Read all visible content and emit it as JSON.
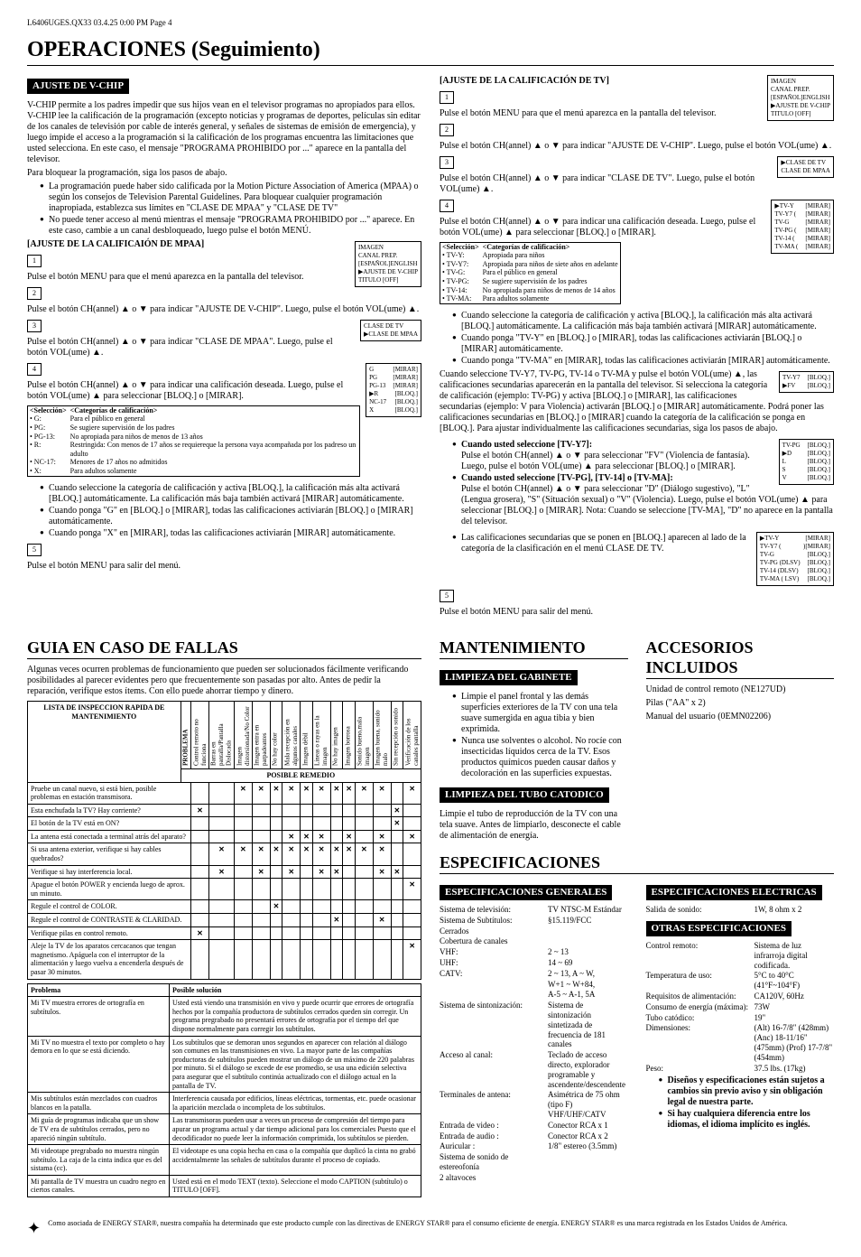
{
  "header_line": "L6406UGES.QX33  03.4.25 0:00 PM  Page 4",
  "main_title": "OPERACIONES (Seguimiento)",
  "vchip": {
    "heading": "AJUSTE DE V-CHIP",
    "intro": "V-CHIP permite a los padres impedir que sus hijos vean en el televisor programas no apropiados para ellos. V-CHIP lee la calificación de la programación (excepto noticias y programas de deportes, películas sin editar de los canales de televisión por cable de interés general, y señales de sistemas de emisión de emergencia), y luego impide el acceso a la programación si la calificación de los programas encuentra las limitaciones que usted selecciona. En este caso, el mensaje \"PROGRAMA PROHIBIDO por ...\" aparece en la pantalla del televisor.",
    "block_intro": "Para bloquear la programación, siga los pasos de abajo.",
    "bullets": [
      "La programación puede haber sido calificada por la Motion Picture Association of America (MPAA) o según los consejos de Television Parental Guidelines. Para bloquear cualquier programación inapropiada, establezca sus límites en \"CLASE DE MPAA\" y \"CLASE DE TV\"",
      "No puede tener acceso al menú mientras el mensaje \"PROGRAMA PROHIBIDO por ...\" aparece. En este caso, cambie a un canal desbloqueado, luego pulse el botón MENÚ."
    ],
    "mpaa_heading": "[AJUSTE DE LA CALIFICAIÓN DE MPAA]",
    "step1": "Pulse el botón MENU para que el menú aparezca en la pantalla del televisor.",
    "step2": "Pulse el botón CH(annel) ▲ o ▼ para indicar \"AJUSTE DE V-CHIP\". Luego, pulse el botón VOL(ume) ▲.",
    "step3": "Pulse el botón CH(annel) ▲ o ▼ para indicar \"CLASE DE MPAA\". Luego, pulse el botón VOL(ume) ▲.",
    "step4": "Pulse el botón CH(annel) ▲ o ▼ para indicar una calificación deseada. Luego, pulse el botón VOL(ume) ▲ para seleccionar [BLOQ.] o [MIRAR].",
    "sel_hdr": "<Selección>",
    "cat_hdr": "<Categorías de calificación>",
    "mpaa_rows": [
      [
        "• G:",
        "Para el público en general"
      ],
      [
        "• PG:",
        "Se sugiere supervisión de los padres"
      ],
      [
        "• PG-13:",
        "No apropiada para niños de menos de 13 años"
      ],
      [
        "• R:",
        "Restringida: Con menos de 17 años se requiereque la persona vaya acompañada por los padreso un adulto"
      ],
      [
        "• NC-17:",
        "Menores de 17 años no admitidos"
      ],
      [
        "• X:",
        "Para adultos solamente"
      ]
    ],
    "mpaa_notes": [
      "Cuando seleccione la categoría de calificación y activa [BLOQ.], la calificación más alta activará [BLOQ.] automáticamente. La calificación más baja también activará [MIRAR] automáticamente.",
      "Cuando ponga \"G\" en [BLOQ.] o [MIRAR], todas las calificaciones activiarán [BLOQ.] o [MIRAR] automáticamente.",
      "Cuando ponga \"X\" en [MIRAR], todas las calificaciones activiarán [MIRAR] automáticamente."
    ],
    "step5": "Pulse el botón MENU para salir del menú.",
    "menu1": [
      "IMAGEN",
      "CANAL PREP.",
      "[ESPAÑOL]ENGLISH",
      "▶AJUSTE DE V-CHIP",
      "TITULO [OFF]"
    ],
    "menu2": [
      "  CLASE DE TV",
      "▶CLASE DE MPAA"
    ],
    "menu3": [
      [
        "G",
        "[MIRAR]"
      ],
      [
        "PG",
        "[MIRAR]"
      ],
      [
        "PG-13",
        "[MIRAR]"
      ],
      [
        "▶R",
        "[BLOQ.]"
      ],
      [
        "NC-17",
        "[BLOQ.]"
      ],
      [
        "X",
        "[BLOQ.]"
      ]
    ],
    "tv_heading": "[AJUSTE DE LA CALIFICACIÓN DE TV]",
    "tv_step1": "Pulse el botón MENU para que el menú aparezca en la pantalla del televisor.",
    "tv_step2": "Pulse el botón CH(annel) ▲ o ▼ para indicar \"AJUSTE DE V-CHIP\". Luego, pulse el botón VOL(ume) ▲.",
    "tv_step3": "Pulse el botón CH(annel) ▲ o ▼ para indicar \"CLASE DE TV\". Luego, pulse el botón VOL(ume) ▲.",
    "tv_step4": "Pulse el botón CH(annel) ▲ o ▼ para indicar una calificación deseada. Luego, pulse el botón VOL(ume) ▲ para seleccionar [BLOQ.] o [MIRAR].",
    "tv_rows": [
      [
        "• TV-Y:",
        "Apropiada para niños"
      ],
      [
        "• TV-Y7:",
        "Apropiada para niños de siete años en adelante"
      ],
      [
        "• TV-G:",
        "Para el público en general"
      ],
      [
        "• TV-PG:",
        "Se sugiere supervisión de los padres"
      ],
      [
        "• TV-14:",
        "No apropiada para niños de menos de 14 años"
      ],
      [
        "• TV-MA:",
        "Para adultos solamente"
      ]
    ],
    "tv_notes": [
      "Cuando seleccione la categoría de calificación y activa [BLOQ.], la calificación más alta activará [BLOQ.] automáticamente. La calificación más baja también activará [MIRAR] automáticamente.",
      "Cuando ponga \"TV-Y\" en [BLOQ.] o [MIRAR], todas las calificaciones activiarán [BLOQ.] o [MIRAR] automáticamente.",
      "Cuando ponga \"TV-MA\" en [MIRAR], todas las calificaciones activiarán [MIRAR] automáticamente."
    ],
    "tv_secondary_intro": "Cuando seleccione TV-Y7, TV-PG, TV-14 o TV-MA y pulse el botón VOL(ume) ▲, las calificaciones secundarias aparecerán en la pantalla del televisor. Si selecciona la categoría de calificación (ejemplo: TV-PG) y activa [BLOQ.] o [MIRAR], las calificaciones secundarias (ejemplo: V para Violencia) activarán [BLOQ.] o [MIRAR] automáticamente. Podrá poner las calificaciones secundarias en [BLOQ.] o [MIRAR] cuando la categoría de la calificación se ponga en [BLOQ.]. Para ajustar individualmente las calificaciones secundarias, siga los pasos de abajo.",
    "tv_y7_bold": "Cuando usted seleccione [TV-Y7]:",
    "tv_y7_text": "Pulse el botón CH(annel) ▲ o ▼ para seleccionar \"FV\" (Violencia de fantasía). Luego, pulse el botón VOL(ume) ▲ para seleccionar [BLOQ.] o [MIRAR].",
    "tv_pg_bold": "Cuando usted seleccione [TV-PG], [TV-14] o [TV-MA]:",
    "tv_pg_text": "Pulse el botón CH(annel) ▲ o ▼ para seleccionar \"D\" (Diálogo sugestivo), \"L\" (Lengua grosera), \"S\" (Situación sexual) o \"V\" (Violencia). Luego, pulse el botón VOL(ume) ▲ para seleccionar [BLOQ.] o [MIRAR]. Nota: Cuando se seleccione [TV-MA], \"D\" no aparece en la pantalla del televisor.",
    "tv_final_note": "Las calificaciones secundarias que se ponen en [BLOQ.] aparecen al lado de la categoría de la clasificación en el menú CLASE DE TV.",
    "tv_step5": "Pulse el botón MENU para salir del menú.",
    "tv_menu2": [
      "▶CLASE DE TV",
      "  CLASE DE MPAA"
    ],
    "tv_menu3": [
      [
        "▶TV-Y",
        "[MIRAR]"
      ],
      [
        "TV-Y7  (",
        "[MIRAR]"
      ],
      [
        "TV-G",
        "[MIRAR]"
      ],
      [
        "TV-PG (",
        "[MIRAR]"
      ],
      [
        "TV-14  (",
        "[MIRAR]"
      ],
      [
        "TV-MA (",
        "[MIRAR]"
      ]
    ],
    "tv_menu4": [
      [
        "TV-Y7",
        "[BLOQ.]"
      ],
      [
        "▶FV",
        "[BLOQ.]"
      ]
    ],
    "tv_menu5": [
      [
        "TV-PG",
        "[BLOQ.]"
      ],
      [
        "▶D",
        "[BLOQ.]"
      ],
      [
        "L",
        "[BLOQ.]"
      ],
      [
        "S",
        "[BLOQ.]"
      ],
      [
        "V",
        "[BLOQ.]"
      ]
    ],
    "tv_menu6": [
      [
        "▶TV-Y",
        "[MIRAR]"
      ],
      [
        "TV-Y7 (",
        ")[MIRAR]"
      ],
      [
        "TV-G",
        "[BLOQ.]"
      ],
      [
        "TV-PG (DLSV)",
        "[BLOQ.]"
      ],
      [
        "TV-14  (DLSV)",
        "[BLOQ.]"
      ],
      [
        "TV-MA (  LSV)",
        "[BLOQ.]"
      ]
    ]
  },
  "guia": {
    "title": "GUIA EN CASO DE FALLAS",
    "intro": "Algunas veces ocurren problemas de funcionamiento que pueden ser solucionados fácilmente verificando posibilidades al parecer evidentes pero que frecuentemente son pasadas por alto. Antes de pedir la reparación, verifique estos ítems. Con ello puede ahorrar tiempo y dinero.",
    "table1_title": "LISTA DE INSPECCION RAPIDA DE MANTENIMIENTO",
    "problema_lbl": "PROBLEMA",
    "remedio_lbl": "POSIBLE REMEDIO",
    "cols": [
      "Control remoto no funciona",
      "Barras en pantalla/Pantalla Dislocada",
      "Imagen distorsionada/No Color",
      "Imagen entra en parpadeantes",
      "No hay color",
      "Mala recepción en algunos canales",
      "Imagen débil",
      "Líneas o rayas en la imagen",
      "No hay imagen",
      "Imagen borrosa",
      "Sonido bueno,mala imagen",
      "Imagen buena, sonido malo",
      "Sin recepción o sonido",
      "Verificación de los canales pantalla"
    ],
    "rows": [
      {
        "r": "Pruebe un canal nuevo, si está bien, posible problemas en estación transmisora.",
        "x": [
          0,
          0,
          1,
          1,
          1,
          1,
          1,
          1,
          1,
          1,
          1,
          1,
          0,
          1
        ]
      },
      {
        "r": "Esta enchufada la TV?  Hay corriente?",
        "x": [
          1,
          0,
          0,
          0,
          0,
          0,
          0,
          0,
          0,
          0,
          0,
          0,
          1,
          0
        ]
      },
      {
        "r": "El botón de la TV está en ON?",
        "x": [
          0,
          0,
          0,
          0,
          0,
          0,
          0,
          0,
          0,
          0,
          0,
          0,
          1,
          0
        ]
      },
      {
        "r": "La antena está conectada a terminal atrás del aparato?",
        "x": [
          0,
          0,
          0,
          0,
          0,
          1,
          1,
          1,
          0,
          1,
          0,
          1,
          0,
          1
        ]
      },
      {
        "r": "Si usa antena exterior, verifique si hay cables quebrados?",
        "x": [
          0,
          1,
          1,
          1,
          1,
          1,
          1,
          1,
          1,
          1,
          1,
          1,
          0,
          0
        ]
      },
      {
        "r": "Verifique si hay interferencia local.",
        "x": [
          0,
          1,
          0,
          1,
          0,
          1,
          0,
          1,
          1,
          0,
          0,
          1,
          1,
          0
        ]
      },
      {
        "r": "Apague el botón POWER y encienda luego de aprox. un minuto.",
        "x": [
          0,
          0,
          0,
          0,
          0,
          0,
          0,
          0,
          0,
          0,
          0,
          0,
          0,
          1
        ]
      },
      {
        "r": "Regule el control de COLOR.",
        "x": [
          0,
          0,
          0,
          0,
          1,
          0,
          0,
          0,
          0,
          0,
          0,
          0,
          0,
          0
        ]
      },
      {
        "r": "Regule el control de CONTRASTE & CLARIDAD.",
        "x": [
          0,
          0,
          0,
          0,
          0,
          0,
          0,
          0,
          1,
          0,
          0,
          1,
          0,
          0
        ]
      },
      {
        "r": "Verifique pilas en control remoto.",
        "x": [
          1,
          0,
          0,
          0,
          0,
          0,
          0,
          0,
          0,
          0,
          0,
          0,
          0,
          0
        ]
      },
      {
        "r": "Aleje la TV de los aparatos cercacanos que tengan magnetismo. Apáguela con el interruptor de la alimentación y luego vuelva a encenderla después de pasar 30 minutos.",
        "x": [
          0,
          0,
          0,
          0,
          0,
          0,
          0,
          0,
          0,
          0,
          0,
          0,
          0,
          1
        ]
      }
    ],
    "table2_hdr": [
      "Problema",
      "Posible solución"
    ],
    "table2": [
      [
        "Mi TV muestra errores de ortografía en subtítulos.",
        "Usted está viendo una transmisión en vivo y puede ocurrir que errores de ortografía hechos por la compañía productora de subtítulos cerrados queden sin corregir. Un programa pregrabado no presentará errores de ortografía por el tiempo del que dispone normalmente para corregir los subtítulos."
      ],
      [
        "Mi TV no muestra el texto por completo o hay demora en lo que se está diciendo.",
        "Los subtítulos que se demoran unos segundos en aparecer con relación al diálogo son comunes en las transmisiones en vivo. La mayor parte de las compañías productoras de subtítulos pueden mostrar un diálogo de un máximo de 220 palabras por minuto. Si el diálogo se excede de ese promedio, se usa una edición selectiva para asegurar que el subtítulo continúa actualizado con el diálogo actual en la pantalla de TV."
      ],
      [
        "Mis subtítulos están mezclados con cuadros blancos en la patalla.",
        "Interferencia causada por edificios, líneas eléctricas, tormentas, etc. puede ocasionar la aparición mezclada o incompleta de los subtítulos."
      ],
      [
        "Mi guía de programas indicaba que un show de TV era de subtítulos cerrados, pero no apareció ningún subtítulo.",
        "Las transmisoras pueden usar a veces un proceso de compresión del tiempo para apurar un programa actual y dar tiempo adicional para los comerciales Puesto que el decodificador no puede leer la información comprimida, los subtítulos se pierden."
      ],
      [
        "Mi videotape pregrabado no muestra ningún subtítulo. La caja de la cinta indica que es del sistama (cc).",
        "El videotape es una copia hecha en casa o la compañía que duplicó la cinta no grabó accidentalmente las señales de subtítulos durante el proceso de copiado."
      ],
      [
        "Mi pantalla de TV muestra un cuadro negro en ciertos canales.",
        "Usted está en el modo TEXT (texto). Seleccione el modo CAPTION (subtítulo) o TITULO [OFF]."
      ]
    ]
  },
  "mant": {
    "title": "MANTENIMIENTO",
    "h1": "LIMPIEZA DEL GABINETE",
    "b1": [
      "Limpie el panel frontal y las demás superficies exteriores de la TV con una tela suave sumergida en agua tibia y bien exprimida.",
      "Nunca use solventes o alcohol. No rocíe con insecticidas líquidos cerca de la TV. Esos productos químicos pueden causar daños y decoloración en las superficies expuestas."
    ],
    "h2": "LIMPIEZA DEL TUBO CATODICO",
    "p2": "Limpie el tubo de reproducción de la TV con una tela suave. Antes de limpiarlo, desconecte el cable de alimentación de energía."
  },
  "acc": {
    "title": "ACCESORIOS INCLUIDOS",
    "items": [
      "Unidad de control remoto (NE127UD)",
      "Pilas (\"AA\" x 2)",
      "Manual del usuario (0EMN02206)"
    ]
  },
  "spec": {
    "title": "ESPECIFICACIONES",
    "h1": "ESPECIFICACIONES GENERALES",
    "gen": [
      [
        "Sistema de televisión:",
        "TV NTSC-M Estándar"
      ],
      [
        "Sistema de Subtítulos:",
        "§15.119/FCC"
      ],
      [
        "Cerrados",
        ""
      ],
      [
        "Cobertura de canales",
        ""
      ],
      [
        "  VHF:",
        "2 ~ 13"
      ],
      [
        "  UHF:",
        "14 ~ 69"
      ],
      [
        "  CATV:",
        "2 ~ 13, A ~ W,"
      ],
      [
        "",
        "W+1 ~ W+84,"
      ],
      [
        "",
        "A-5 ~ A-1, 5A"
      ],
      [
        "Sistema de sintonización:",
        "Sistema de sintonización sintetizada de frecuencia de 181 canales"
      ],
      [
        "Acceso al canal:",
        "Teclado de acceso directo, explorador programable y ascendente/descendente"
      ],
      [
        "Terminales de antena:",
        "Asimétrica de 75 ohm (tipo F) VHF/UHF/CATV"
      ],
      [
        "  Entrada de video :",
        "Conector RCA x 1"
      ],
      [
        "  Entrada de audio :",
        "Conector RCA x 2"
      ],
      [
        "  Auricular :",
        "1/8\" estereo (3.5mm)"
      ],
      [
        "Sistema de sonido de estereofonía",
        ""
      ],
      [
        "2 altavoces",
        ""
      ]
    ],
    "h2": "ESPECIFICACIONES ELECTRICAS",
    "elec": [
      [
        "Salida de sonido:",
        "1W, 8 ohm x 2"
      ]
    ],
    "h3": "OTRAS ESPECIFICACIONES",
    "other": [
      [
        "Control remoto:",
        "Sistema de luz infrarroja digital codificada."
      ],
      [
        "Temperatura de uso:",
        "5°C to 40°C (41°F~104°F)"
      ],
      [
        "Requisitos de alimentación:",
        "CA120V, 60Hz"
      ],
      [
        "Consumo de energía (máxima):",
        "73W"
      ],
      [
        "Tubo catódico:",
        "19\""
      ],
      [
        "Dimensiones:",
        "(Alt) 16-7/8\" (428mm) (Anc) 18-11/16\" (475mm) (Prof) 17-7/8\" (454mm)"
      ],
      [
        "Peso:",
        "37.5 lbs. (17kg)"
      ]
    ],
    "notes": [
      "Diseños y especificaciones están sujetos a cambios sin previo aviso y sin obligación legal de nuestra parte.",
      "Si hay cualquiera diferencia entre los idiomas, el idioma implícito es inglés."
    ]
  },
  "footer": "Como asociada de ENERGY STAR®, nuestra compañía ha determinado que este producto cumple con las directivas de ENERGY STAR® para el consumo eficiente de energía. ENERGY STAR® es una marca registrada en los Estados Unidos de América."
}
